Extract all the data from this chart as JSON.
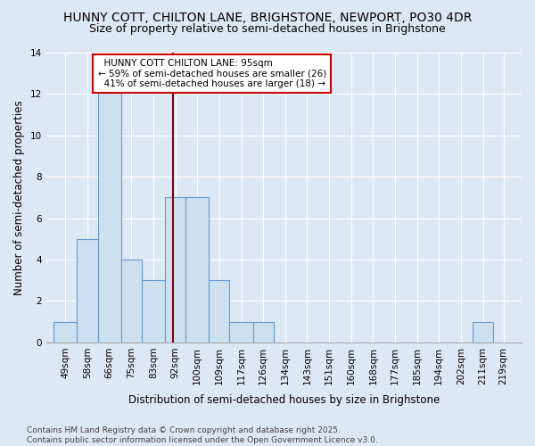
{
  "title": "HUNNY COTT, CHILTON LANE, BRIGHSTONE, NEWPORT, PO30 4DR",
  "subtitle": "Size of property relative to semi-detached houses in Brighstone",
  "xlabel": "Distribution of semi-detached houses by size in Brighstone",
  "ylabel": "Number of semi-detached properties",
  "bar_color": "#cce0f0",
  "bar_edge_color": "#6699cc",
  "annotation_box_color": "#ffffff",
  "annotation_border_color": "#cc0000",
  "property_line_color": "#880000",
  "bin_labels": [
    "49sqm",
    "58sqm",
    "66sqm",
    "75sqm",
    "83sqm",
    "92sqm",
    "100sqm",
    "109sqm",
    "117sqm",
    "126sqm",
    "134sqm",
    "143sqm",
    "151sqm",
    "160sqm",
    "168sqm",
    "177sqm",
    "185sqm",
    "194sqm",
    "202sqm",
    "211sqm",
    "219sqm"
  ],
  "bin_edges": [
    49,
    58,
    66,
    75,
    83,
    92,
    100,
    109,
    117,
    126,
    134,
    143,
    151,
    160,
    168,
    177,
    185,
    194,
    202,
    211,
    219,
    227
  ],
  "bar_heights": [
    1,
    5,
    13,
    4,
    3,
    7,
    7,
    3,
    1,
    1,
    0,
    0,
    0,
    0,
    0,
    0,
    0,
    0,
    0,
    1,
    0
  ],
  "property_value": 95,
  "property_label": "HUNNY COTT CHILTON LANE: 95sqm",
  "pct_smaller": 59,
  "count_smaller": 26,
  "pct_larger": 41,
  "count_larger": 18,
  "ylim": [
    0,
    14
  ],
  "yticks": [
    0,
    2,
    4,
    6,
    8,
    10,
    12,
    14
  ],
  "background_color": "#dde8f5",
  "plot_bg_color": "#dde8f5",
  "footer_text": "Contains HM Land Registry data © Crown copyright and database right 2025.\nContains public sector information licensed under the Open Government Licence v3.0.",
  "title_fontsize": 10,
  "subtitle_fontsize": 9,
  "xlabel_fontsize": 8.5,
  "ylabel_fontsize": 8.5,
  "tick_fontsize": 7.5,
  "annotation_fontsize": 7.5,
  "footer_fontsize": 6.5
}
